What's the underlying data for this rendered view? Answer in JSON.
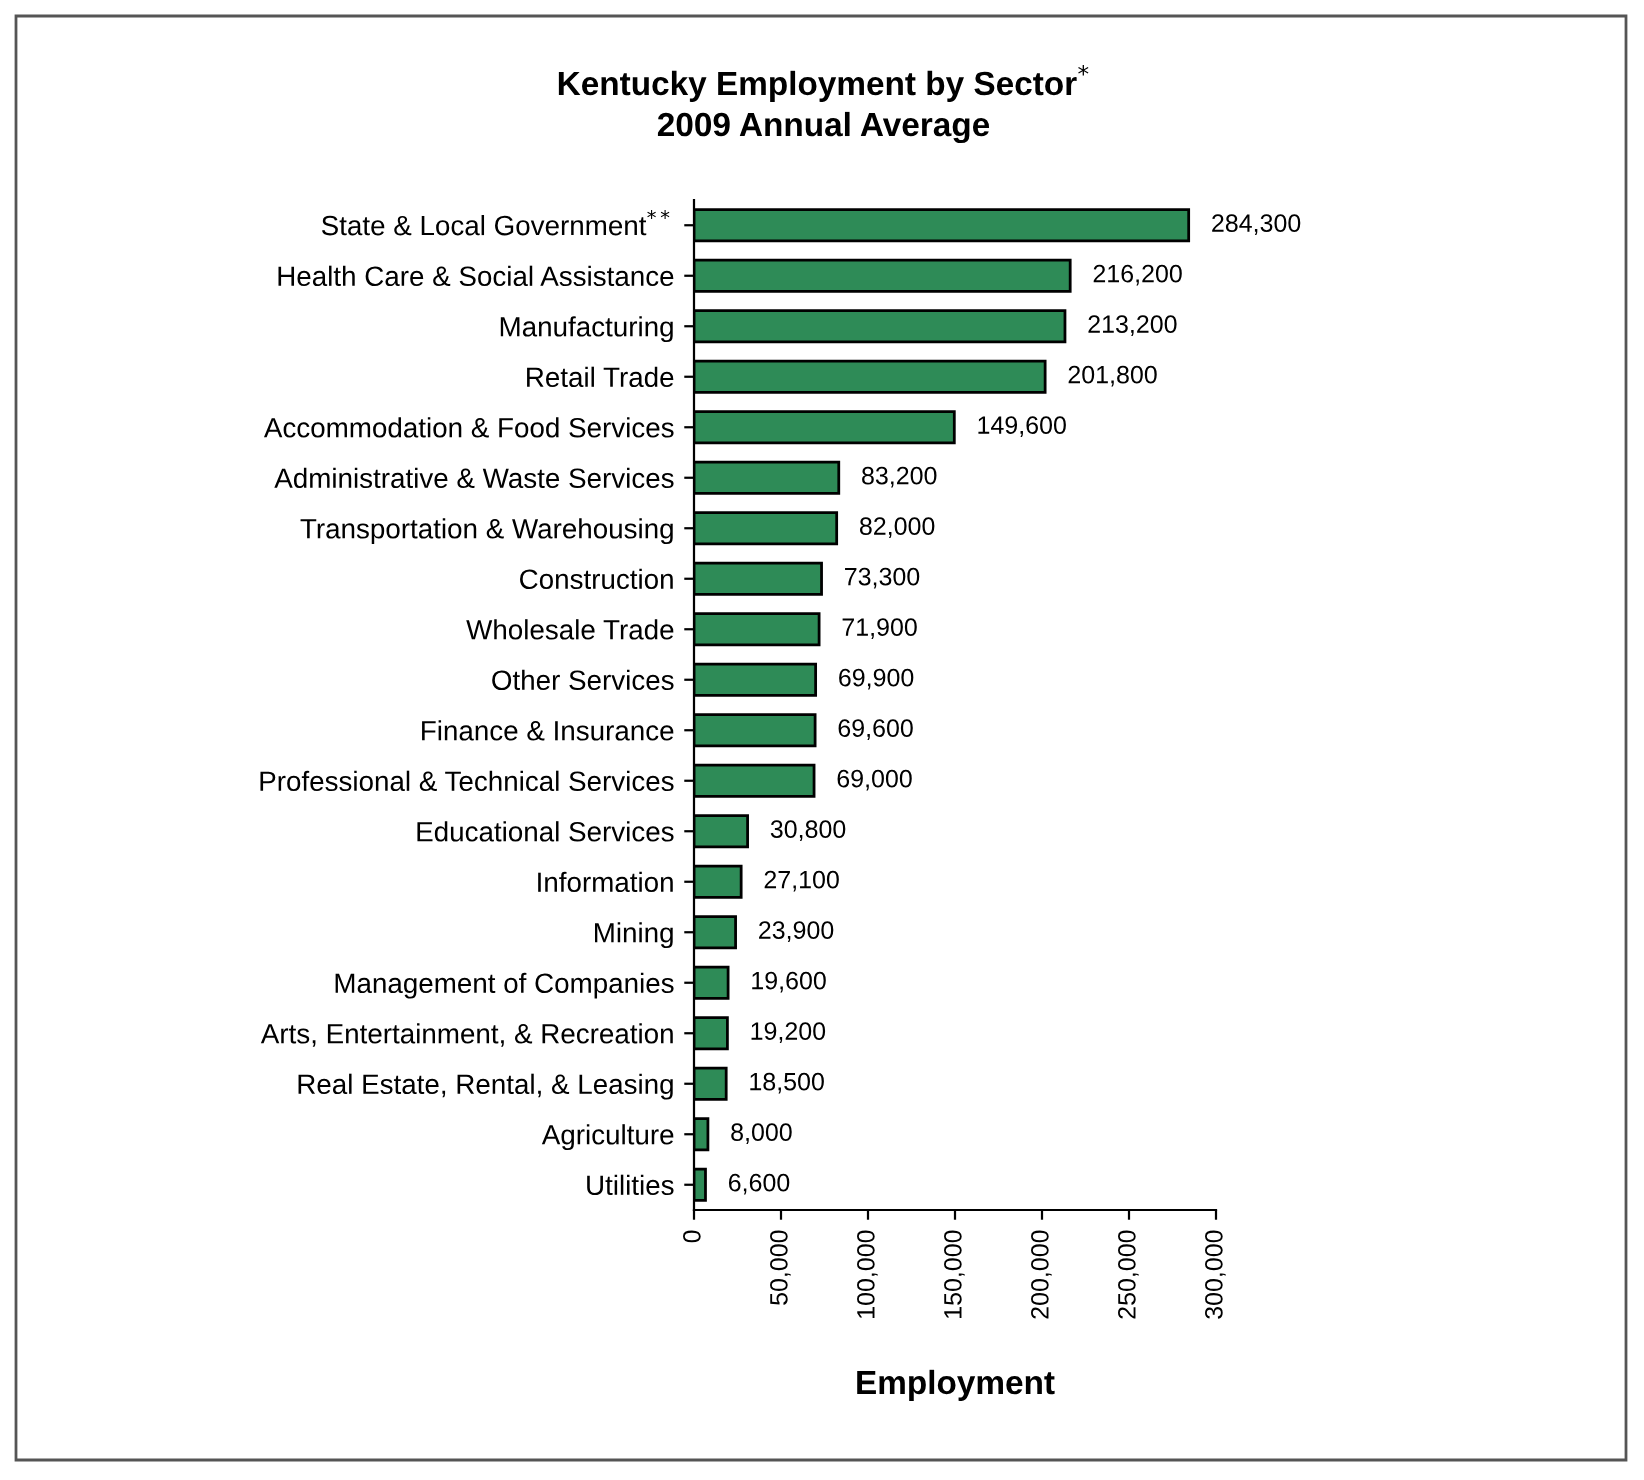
{
  "chart_data": {
    "type": "bar",
    "orientation": "horizontal",
    "title": "Kentucky Employment by Sector$^{*}$\n2009 Annual Average",
    "xlabel": "Employment",
    "categories": [
      "State & Local Government$^{**}$",
      "Health Care & Social Assistance",
      "Manufacturing",
      "Retail Trade",
      "Accommodation & Food Services",
      "Administrative & Waste Services",
      "Transportation & Warehousing",
      "Construction",
      "Wholesale Trade",
      "Other Services",
      "Finance & Insurance",
      "Professional & Technical Services",
      "Educational Services",
      "Information",
      "Mining",
      "Management of Companies",
      "Arts, Entertainment, & Recreation",
      "Real Estate, Rental, & Leasing",
      "Agriculture",
      "Utilities"
    ],
    "values": [
      284300,
      216200,
      213200,
      201800,
      149600,
      83200,
      82000,
      73300,
      71900,
      69900,
      69600,
      69000,
      30800,
      27100,
      23900,
      19600,
      19200,
      18500,
      8000,
      6600
    ],
    "color": "#2e8b57",
    "value_labels": [
      "284,300",
      "216,200",
      "213,200",
      "201,800",
      "149,600",
      "83,200",
      "82,000",
      "73,300",
      "71,900",
      "69,900",
      "69,600",
      "69,000",
      "30,800",
      "27,100",
      "23,900",
      "19,600",
      "19,200",
      "18,500",
      "8,000",
      "6,600"
    ],
    "xlim": [
      0,
      300000
    ],
    "xticks": [
      0,
      {
        "value": 50000,
        "label": "50,000"
      },
      {
        "value": 100000,
        "label": "100,000"
      },
      {
        "value": 150000,
        "label": "150,000"
      },
      {
        "value": 200000,
        "label": "200,000"
      },
      {
        "value": 250000,
        "label": "250,000"
      },
      {
        "value": 300000,
        "label": "300,000"
      }
    ],
    "grid": false,
    "legend": false
  }
}
